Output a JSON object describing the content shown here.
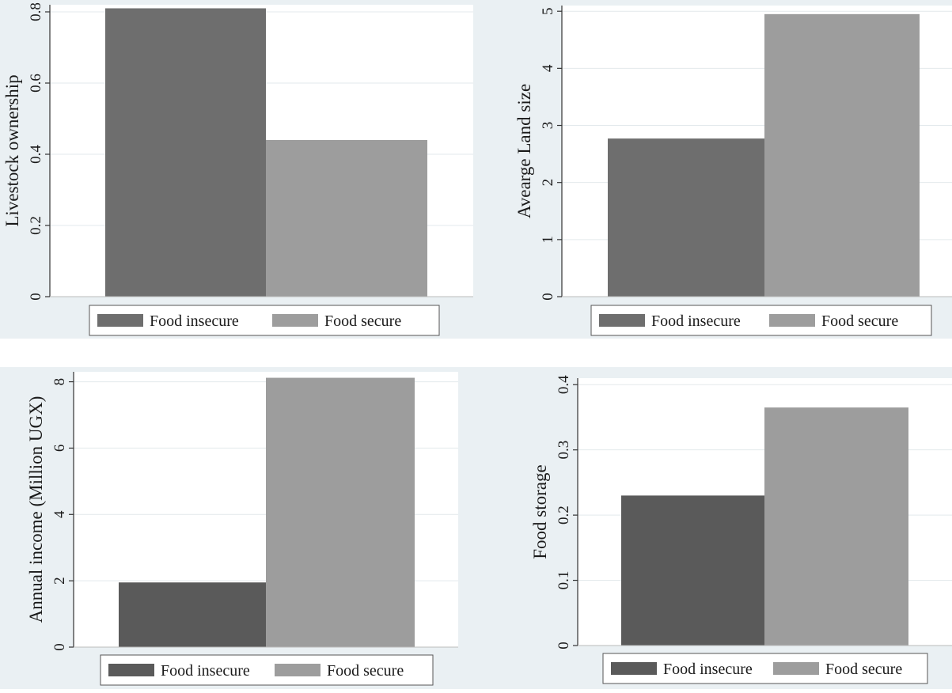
{
  "chart_data": [
    {
      "type": "bar",
      "title": "",
      "xlabel": "",
      "ylabel": "Livestock ownership",
      "ylim": [
        0,
        0.82
      ],
      "yticks": [
        0,
        0.2,
        0.4,
        0.6,
        0.8
      ],
      "ytick_labels": [
        "0",
        "0.2",
        "0.4",
        "0.6",
        "0.8"
      ],
      "grid": true,
      "legend_position": "bottom",
      "series": [
        {
          "name": "Food insecure",
          "values": [
            0.81
          ],
          "color": "#6e6e6e"
        },
        {
          "name": "Food secure",
          "values": [
            0.44
          ],
          "color": "#9d9d9d"
        }
      ]
    },
    {
      "type": "bar",
      "title": "",
      "xlabel": "",
      "ylabel": "Avearge Land size",
      "ylim": [
        0,
        5.1
      ],
      "yticks": [
        0,
        1,
        2,
        3,
        4,
        5
      ],
      "ytick_labels": [
        "0",
        "1",
        "2",
        "3",
        "4",
        "5"
      ],
      "grid": true,
      "legend_position": "bottom",
      "series": [
        {
          "name": "Food insecure",
          "values": [
            2.77
          ],
          "color": "#6e6e6e"
        },
        {
          "name": "Food secure",
          "values": [
            4.95
          ],
          "color": "#9d9d9d"
        }
      ]
    },
    {
      "type": "bar",
      "title": "",
      "xlabel": "",
      "ylabel": "Annual income (Million UGX)",
      "ylim": [
        0,
        8.3
      ],
      "yticks": [
        0,
        2,
        4,
        6,
        8
      ],
      "ytick_labels": [
        "0",
        "2",
        "4",
        "6",
        "8"
      ],
      "grid": true,
      "legend_position": "bottom",
      "series": [
        {
          "name": "Food insecure",
          "values": [
            1.95
          ],
          "color": "#5a5a5a"
        },
        {
          "name": "Food secure",
          "values": [
            8.12
          ],
          "color": "#9d9d9d"
        }
      ]
    },
    {
      "type": "bar",
      "title": "",
      "xlabel": "",
      "ylabel": "Food storage",
      "ylim": [
        0,
        0.41
      ],
      "yticks": [
        0,
        0.1,
        0.2,
        0.3,
        0.4
      ],
      "ytick_labels": [
        "0",
        "0.1",
        "0.2",
        "0.3",
        "0.4"
      ],
      "grid": true,
      "legend_position": "bottom",
      "series": [
        {
          "name": "Food insecure",
          "values": [
            0.23
          ],
          "color": "#5a5a5a"
        },
        {
          "name": "Food secure",
          "values": [
            0.365
          ],
          "color": "#9d9d9d"
        }
      ]
    }
  ]
}
